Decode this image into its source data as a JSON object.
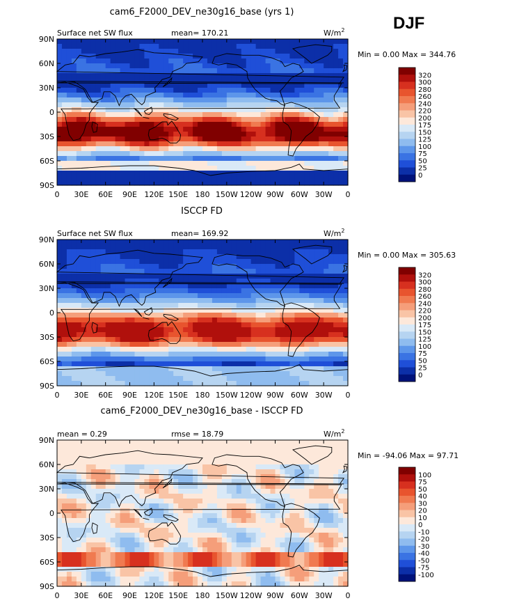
{
  "season": "DJF",
  "chart_data": [
    {
      "type": "heatmap",
      "title": "cam6_F2000_DEV_ne30g16_base (yrs 1)",
      "left_label": "Surface net SW flux",
      "stat_label": "mean=",
      "stat_value": "170.21",
      "units": "W/m",
      "units_sup": "2",
      "min_text": "Min =    0.00 Max = 344.76",
      "min": 0.0,
      "max": 344.76,
      "x_ticks": [
        "0",
        "30E",
        "60E",
        "90E",
        "120E",
        "150E",
        "180",
        "150W",
        "120W",
        "90W",
        "60W",
        "30W",
        "0"
      ],
      "y_ticks": [
        "90N",
        "60N",
        "30N",
        "0",
        "30S",
        "60S",
        "90S"
      ],
      "colorbar_labels": [
        "320",
        "300",
        "280",
        "260",
        "240",
        "220",
        "200",
        "175",
        "150",
        "125",
        "100",
        "75",
        "50",
        "25",
        "0"
      ],
      "colors": [
        "#800000",
        "#b0100c",
        "#d7301f",
        "#e8542e",
        "#f07a50",
        "#f59e7a",
        "#f9c4a6",
        "#fde8da",
        "#d9e9f7",
        "#b6d4f1",
        "#8fbcef",
        "#5d96ea",
        "#3a73e3",
        "#1f4fd8",
        "#0c2fa8",
        "#00127a"
      ]
    },
    {
      "type": "heatmap",
      "title": "ISCCP FD",
      "left_label": "Surface net SW flux",
      "stat_label": "mean=",
      "stat_value": "169.92",
      "units": "W/m",
      "units_sup": "2",
      "min_text": "Min =    0.00 Max = 305.63",
      "min": 0.0,
      "max": 305.63,
      "x_ticks": [
        "0",
        "30E",
        "60E",
        "90E",
        "120E",
        "150E",
        "180",
        "150W",
        "120W",
        "90W",
        "60W",
        "30W",
        "0"
      ],
      "y_ticks": [
        "90N",
        "60N",
        "30N",
        "0",
        "30S",
        "60S",
        "90S"
      ],
      "colorbar_labels": [
        "320",
        "300",
        "280",
        "260",
        "240",
        "220",
        "200",
        "175",
        "150",
        "125",
        "100",
        "75",
        "50",
        "25",
        "0"
      ],
      "colors": [
        "#800000",
        "#b0100c",
        "#d7301f",
        "#e8542e",
        "#f07a50",
        "#f59e7a",
        "#f9c4a6",
        "#fde8da",
        "#d9e9f7",
        "#b6d4f1",
        "#8fbcef",
        "#5d96ea",
        "#3a73e3",
        "#1f4fd8",
        "#0c2fa8",
        "#00127a"
      ]
    },
    {
      "type": "heatmap",
      "title": "cam6_F2000_DEV_ne30g16_base - ISCCP FD",
      "left_label": "mean =    0.29",
      "stat_label": "rmse =",
      "stat_value": "18.79",
      "units": "W/m",
      "units_sup": "2",
      "min_text": "Min = -94.06 Max =  97.71",
      "min": -94.06,
      "max": 97.71,
      "x_ticks": [
        "0",
        "30E",
        "60E",
        "90E",
        "120E",
        "150E",
        "180",
        "150W",
        "120W",
        "90W",
        "60W",
        "30W",
        "0"
      ],
      "y_ticks": [
        "90N",
        "60N",
        "30N",
        "0",
        "30S",
        "60S",
        "90S"
      ],
      "colorbar_labels": [
        "100",
        "75",
        "50",
        "40",
        "30",
        "20",
        "10",
        "0",
        "-10",
        "-20",
        "-30",
        "-40",
        "-50",
        "-75",
        "-100"
      ],
      "colors": [
        "#800000",
        "#b0100c",
        "#d7301f",
        "#e8542e",
        "#f07a50",
        "#f59e7a",
        "#f9c4a6",
        "#fde8da",
        "#d9e9f7",
        "#b6d4f1",
        "#8fbcef",
        "#5d96ea",
        "#3a73e3",
        "#1f4fd8",
        "#0c2fa8",
        "#00127a"
      ]
    }
  ]
}
